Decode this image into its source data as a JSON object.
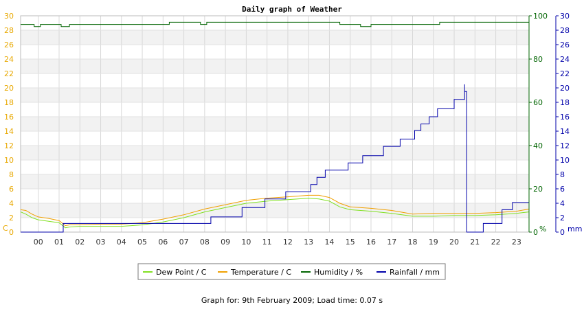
{
  "chart_data": {
    "type": "line",
    "title": "Daily graph of Weather",
    "x_tick_labels": [
      "00",
      "01",
      "02",
      "03",
      "04",
      "05",
      "06",
      "07",
      "08",
      "09",
      "10",
      "11",
      "12",
      "13",
      "14",
      "15",
      "16",
      "17",
      "18",
      "19",
      "20",
      "21",
      "22",
      "23"
    ],
    "x_range_hours": [
      -0.85,
      23.6
    ],
    "left_axis": {
      "unit_label": "C",
      "range": [
        0,
        30
      ],
      "ticks": [
        0,
        2,
        4,
        6,
        8,
        10,
        12,
        14,
        16,
        18,
        20,
        22,
        24,
        26,
        28,
        30
      ],
      "color": "#e8a800"
    },
    "mid_axis": {
      "unit_label": "%",
      "range": [
        0,
        100
      ],
      "ticks": [
        0,
        20,
        40,
        60,
        80,
        100
      ],
      "color": "#006400"
    },
    "right_axis": {
      "unit_label": "mm",
      "range": [
        0,
        30
      ],
      "ticks": [
        0,
        2,
        4,
        6,
        8,
        10,
        12,
        14,
        16,
        18,
        20,
        22,
        24,
        26,
        28,
        30
      ],
      "color": "#0000aa"
    },
    "series": [
      {
        "name": "Dew Point / C",
        "axis": "left",
        "color": "#80e020",
        "step": false,
        "x": [
          -0.85,
          -0.6,
          -0.3,
          0.0,
          0.5,
          1.0,
          1.3,
          1.5,
          2.0,
          3.0,
          4.0,
          5.0,
          6.0,
          7.0,
          8.0,
          9.0,
          10.0,
          11.0,
          12.0,
          13.0,
          13.5,
          14.0,
          14.5,
          15.0,
          16.0,
          17.0,
          18.0,
          19.0,
          20.0,
          21.0,
          22.0,
          23.0,
          23.6
        ],
        "values": [
          2.8,
          2.5,
          2.0,
          1.7,
          1.5,
          1.3,
          0.6,
          0.7,
          0.8,
          0.8,
          0.8,
          1.0,
          1.4,
          2.0,
          2.8,
          3.4,
          4.0,
          4.3,
          4.5,
          4.7,
          4.6,
          4.3,
          3.5,
          3.1,
          2.9,
          2.6,
          2.2,
          2.2,
          2.3,
          2.3,
          2.4,
          2.6,
          2.8
        ]
      },
      {
        "name": "Temperature / C",
        "axis": "left",
        "color": "#f0a000",
        "step": false,
        "x": [
          -0.85,
          -0.6,
          -0.3,
          0.0,
          0.5,
          1.0,
          1.3,
          1.5,
          2.0,
          3.0,
          4.0,
          5.0,
          6.0,
          7.0,
          8.0,
          9.0,
          10.0,
          11.0,
          12.0,
          13.0,
          13.5,
          14.0,
          14.5,
          15.0,
          16.0,
          17.0,
          18.0,
          19.0,
          20.0,
          21.0,
          22.0,
          23.0,
          23.6
        ],
        "values": [
          3.1,
          3.0,
          2.5,
          2.1,
          1.9,
          1.6,
          0.9,
          1.0,
          1.0,
          1.1,
          1.1,
          1.3,
          1.8,
          2.4,
          3.2,
          3.8,
          4.4,
          4.7,
          4.9,
          5.1,
          5.1,
          4.8,
          4.0,
          3.5,
          3.3,
          3.0,
          2.5,
          2.6,
          2.6,
          2.6,
          2.7,
          2.9,
          3.2
        ]
      },
      {
        "name": "Humidity / %",
        "axis": "mid",
        "color": "#006400",
        "step": true,
        "x": [
          -0.85,
          -0.2,
          0.1,
          1.1,
          1.5,
          6.0,
          6.3,
          7.8,
          8.1,
          14.5,
          15.5,
          16.0,
          18.2,
          19.0,
          19.3,
          22.0,
          23.6
        ],
        "values": [
          96,
          95,
          96,
          95,
          96,
          96,
          97,
          96,
          97,
          96,
          95,
          96,
          96,
          96,
          97,
          97,
          97
        ]
      },
      {
        "name": "Rainfall / mm",
        "axis": "right",
        "color": "#0000aa",
        "step": true,
        "x": [
          -0.85,
          1.2,
          8.3,
          9.8,
          10.9,
          11.9,
          13.1,
          13.4,
          13.8,
          14.9,
          15.6,
          16.6,
          17.4,
          18.1,
          18.4,
          18.8,
          19.2,
          20.0,
          20.5,
          20.6,
          21.4,
          22.3,
          22.8,
          23.6
        ],
        "values": [
          0,
          1.2,
          2.1,
          3.4,
          4.6,
          5.6,
          6.6,
          7.6,
          8.6,
          9.6,
          10.6,
          11.9,
          12.9,
          14.1,
          15.0,
          16.0,
          17.1,
          18.4,
          19.5,
          0,
          1.2,
          3.1,
          4.1,
          4.1
        ],
        "spike": {
          "x": 20.5,
          "value": 20.5
        }
      }
    ],
    "grid": true,
    "legend_position": "bottom-center"
  },
  "footer": "Graph for: 9th February 2009; Load time: 0.07 s"
}
